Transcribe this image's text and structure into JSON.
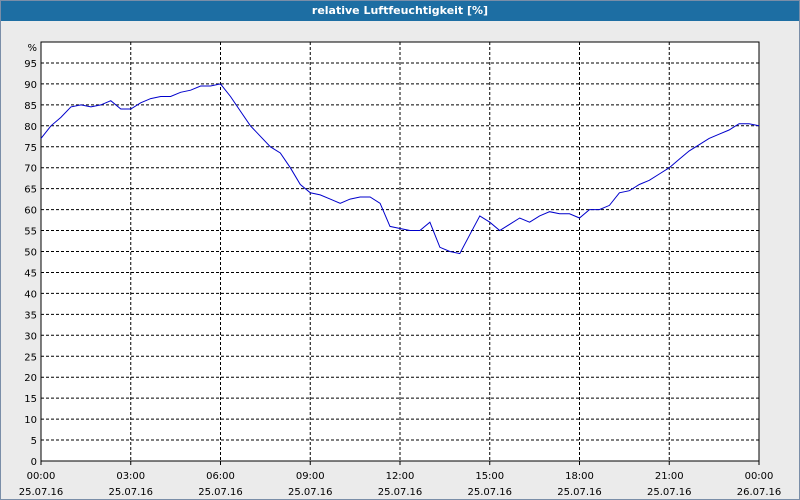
{
  "chart_data": {
    "type": "line",
    "title": "relative Luftfeuchtigkeit [%]",
    "ylabel": "%",
    "xlabel": "",
    "ylim": [
      0,
      100
    ],
    "y_ticks": [
      0,
      5,
      10,
      15,
      20,
      25,
      30,
      35,
      40,
      45,
      50,
      55,
      60,
      65,
      70,
      75,
      80,
      85,
      90,
      95
    ],
    "xlim": [
      "2016-07-25 00:00",
      "2016-07-26 00:00"
    ],
    "x_ticks": [
      {
        "time": "00:00",
        "date": "25.07.16"
      },
      {
        "time": "03:00",
        "date": "25.07.16"
      },
      {
        "time": "06:00",
        "date": "25.07.16"
      },
      {
        "time": "09:00",
        "date": "25.07.16"
      },
      {
        "time": "12:00",
        "date": "25.07.16"
      },
      {
        "time": "15:00",
        "date": "25.07.16"
      },
      {
        "time": "18:00",
        "date": "25.07.16"
      },
      {
        "time": "21:00",
        "date": "25.07.16"
      },
      {
        "time": "00:00",
        "date": "26.07.16"
      }
    ],
    "grid": true,
    "line_color": "#0000cc",
    "series": [
      {
        "x": [
          "00:00",
          "00:20",
          "00:40",
          "01:00",
          "01:20",
          "01:40",
          "02:00",
          "02:20",
          "02:40",
          "03:00",
          "03:20",
          "03:40",
          "04:00",
          "04:20",
          "04:40",
          "05:00",
          "05:20",
          "05:40",
          "06:00",
          "06:20",
          "06:40",
          "07:00",
          "07:20",
          "07:40",
          "08:00",
          "08:20",
          "08:40",
          "09:00",
          "09:20",
          "09:40",
          "10:00",
          "10:20",
          "10:40",
          "11:00",
          "11:20",
          "11:40",
          "12:00",
          "12:20",
          "12:40",
          "13:00",
          "13:20",
          "13:40",
          "14:00",
          "14:20",
          "14:40",
          "15:00",
          "15:20",
          "15:40",
          "16:00",
          "16:20",
          "16:40",
          "17:00",
          "17:20",
          "17:40",
          "18:00",
          "18:20",
          "18:40",
          "19:00",
          "19:20",
          "19:40",
          "20:00",
          "20:20",
          "20:40",
          "21:00",
          "21:20",
          "21:40",
          "22:00",
          "22:20",
          "22:40",
          "23:00",
          "23:20",
          "23:40",
          "24:00"
        ],
        "y": [
          77,
          80,
          82,
          84.5,
          85,
          84.5,
          85,
          86,
          84,
          84,
          85.5,
          86.5,
          87,
          87,
          88,
          88.5,
          89.5,
          89.5,
          90,
          87,
          83.5,
          80,
          77.5,
          75,
          73.5,
          70,
          66,
          64,
          63.5,
          62.5,
          61.5,
          62.5,
          63,
          63,
          61.5,
          56,
          55.5,
          55,
          55,
          57,
          51,
          50,
          49.5,
          54,
          58.5,
          57,
          55,
          56.5,
          58,
          57,
          58.5,
          59.5,
          59,
          59,
          58,
          60,
          60,
          61,
          64,
          64.5,
          66,
          67,
          68.5,
          70,
          72,
          74,
          75.5,
          77,
          78,
          79,
          80.5,
          80.5,
          80
        ]
      }
    ]
  }
}
